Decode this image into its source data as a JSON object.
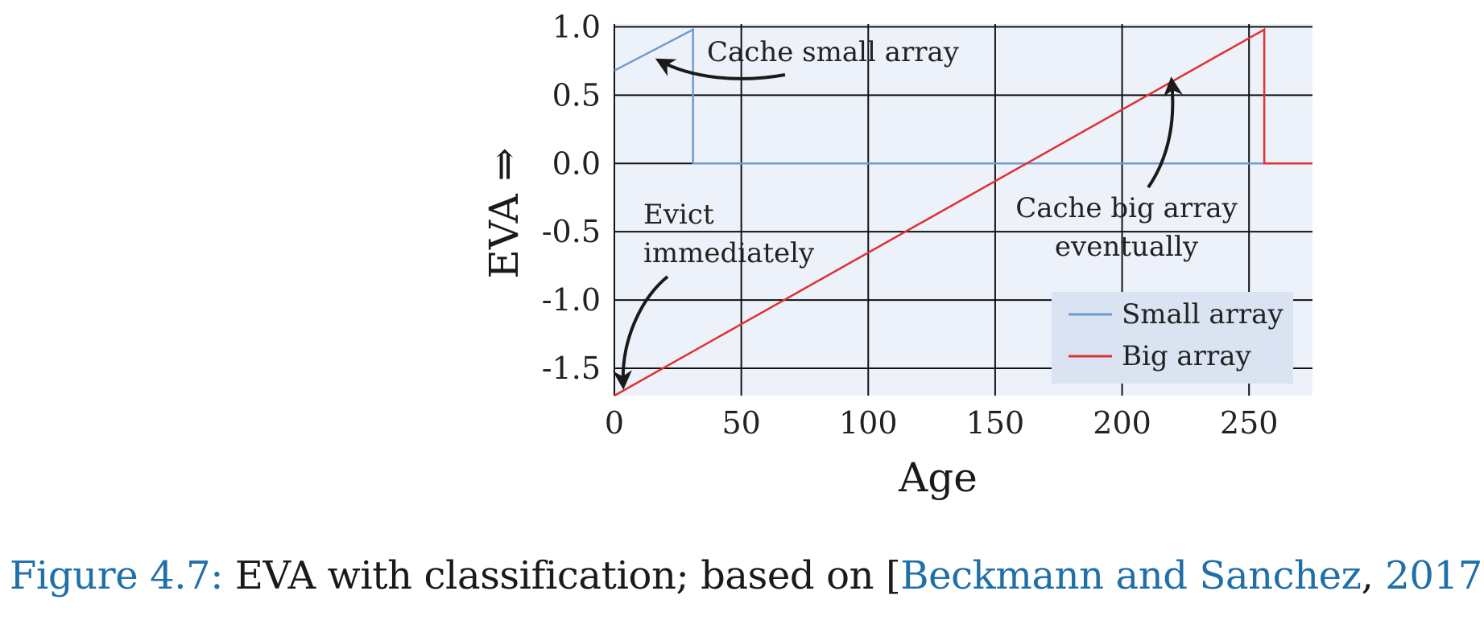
{
  "chart_data": {
    "type": "line",
    "xlabel": "Age",
    "ylabel": "EVA ⇒",
    "xlim": [
      0,
      275
    ],
    "ylim": [
      -1.7,
      1.02
    ],
    "x_ticks": [
      0,
      50,
      100,
      150,
      200,
      250
    ],
    "x_tick_labels": [
      "0",
      "50",
      "100",
      "150",
      "200",
      "250"
    ],
    "y_ticks": [
      1.0,
      0.5,
      0.0,
      -0.5,
      -1.0,
      -1.5
    ],
    "y_tick_labels": [
      "1.0",
      "0.5",
      "0.0",
      "-0.5",
      "-1.0",
      "-1.5"
    ],
    "grid": true,
    "legend_position": "bottom-right",
    "series": [
      {
        "name": "Small array",
        "color": "#6e9bd1",
        "points": [
          [
            0,
            0.68
          ],
          [
            31,
            0.98
          ],
          [
            31,
            0.0
          ],
          [
            275,
            0.0
          ]
        ]
      },
      {
        "name": "Big array",
        "color": "#e03030",
        "points": [
          [
            0,
            -1.7
          ],
          [
            256,
            0.98
          ],
          [
            256,
            0.0
          ],
          [
            275,
            0.0
          ]
        ]
      }
    ],
    "annotations": [
      {
        "lines": [
          "Cache small array"
        ]
      },
      {
        "lines": [
          "Evict",
          "immediately"
        ]
      },
      {
        "lines": [
          "Cache big array",
          "eventually"
        ]
      }
    ]
  },
  "caption": {
    "label": "Figure 4.7:",
    "text": " EVA with classification; based on [",
    "citation_authors": "Beckmann and Sanchez",
    "citation_sep": ", ",
    "citation_year": "2017",
    "end": "]."
  }
}
